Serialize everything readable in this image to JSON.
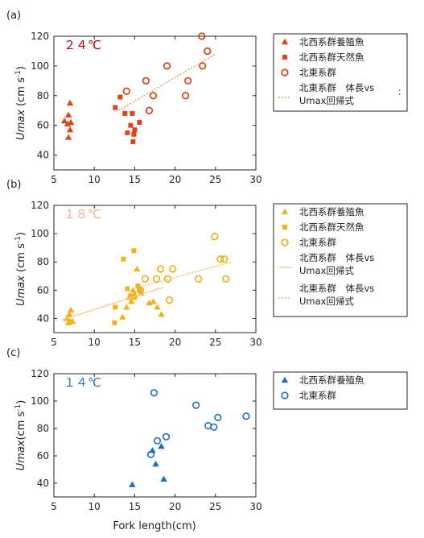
{
  "figure": {
    "xlabel": "Fork length(cm)",
    "ylabel_main": "Umax",
    "ylabel_unit_a": " (cm s",
    "ylabel_unit_b": " (cm s",
    "ylabel_unit_c": "(cm s",
    "ylabel_exp": "-1",
    "ylabel_close": ")"
  },
  "chart_data": [
    {
      "type": "scatter",
      "panel_label": "(a)",
      "temperature": "２４℃",
      "temperature_color": "#c00000",
      "xlim": [
        5,
        30
      ],
      "ylim": [
        30,
        120
      ],
      "xticks": [
        5,
        10,
        15,
        20,
        25,
        30
      ],
      "yticks": [
        40,
        60,
        80,
        100,
        120
      ],
      "legend": {
        "items": [
          {
            "marker": "triangle-filled",
            "color": "#e0441a",
            "label": "北西系群養殖魚"
          },
          {
            "marker": "square-filled",
            "color": "#e0441a",
            "label": "北西系群天然魚"
          },
          {
            "marker": "circle-open",
            "color": "#d43a10",
            "label": "北東系群"
          },
          {
            "marker": "dotted-line",
            "color": "#ee8855",
            "label": "北東系群　体長vs",
            "label2": "Umax回帰式"
          }
        ],
        "marker_char": "："
      },
      "series": [
        {
          "name": "北西系群養殖魚",
          "marker": "triangle-filled",
          "color": "#e0441a",
          "x": [
            6.3,
            6.8,
            7.0,
            6.7,
            7.0,
            6.8,
            7.1
          ],
          "y": [
            63,
            67,
            75,
            61,
            57,
            52,
            62
          ]
        },
        {
          "name": "北西系群天然魚",
          "marker": "square-filled",
          "color": "#e0441a",
          "x": [
            12.6,
            13.2,
            13.8,
            14.1,
            14.5,
            14.7,
            14.8,
            14.9,
            15.0,
            15.6
          ],
          "y": [
            72,
            79,
            68,
            55,
            60,
            68,
            49,
            54,
            57,
            62
          ]
        },
        {
          "name": "北東系群",
          "marker": "circle-open",
          "color": "#d43a10",
          "x": [
            14.0,
            16.4,
            16.8,
            17.3,
            19.0,
            21.3,
            21.6,
            23.3,
            23.4,
            24.0
          ],
          "y": [
            83,
            90,
            70,
            80,
            100,
            80,
            90,
            120,
            100,
            110
          ]
        },
        {
          "name": "北東系群　体長vs Umax回帰式",
          "type": "line",
          "style": "dotted",
          "color": "#ee8855",
          "x": [
            13.0,
            25.0
          ],
          "y": [
            70.0,
            108.0
          ]
        }
      ]
    },
    {
      "type": "scatter",
      "panel_label": "(b)",
      "temperature": "１８℃",
      "temperature_color": "#f4b183",
      "xlim": [
        5,
        30
      ],
      "ylim": [
        30,
        120
      ],
      "xticks": [
        5,
        10,
        15,
        20,
        25,
        30
      ],
      "yticks": [
        40,
        60,
        80,
        100,
        120
      ],
      "legend": {
        "items": [
          {
            "marker": "triangle-filled",
            "color": "#f2b31a",
            "label": "北西系群養殖魚"
          },
          {
            "marker": "square-filled",
            "color": "#f2b31a",
            "label": "北西系群天然魚"
          },
          {
            "marker": "circle-open",
            "color": "#e8b016",
            "label": "北東系群"
          },
          {
            "marker": "solid-line",
            "color": "#f5c57a",
            "label": "北西系群　体長vs",
            "label2": "Umax回帰式"
          },
          {
            "marker": "dotted-line",
            "color": "#f0b050",
            "label": "北東系群　体長vs",
            "label2": "Umax回帰式"
          }
        ]
      },
      "series": [
        {
          "name": "北西系群養殖魚",
          "marker": "triangle-filled",
          "color": "#f2b31a",
          "x": [
            6.6,
            6.9,
            7.1,
            7.3,
            6.8,
            7.0,
            13.5,
            14.0,
            14.3,
            14.6,
            15.0,
            15.3,
            15.8,
            16.8,
            17.3,
            17.8,
            18.3,
            14.8
          ],
          "y": [
            40,
            43,
            46,
            38,
            37,
            38,
            41,
            48,
            55,
            52,
            57,
            75,
            58,
            51,
            52,
            48,
            43,
            60
          ]
        },
        {
          "name": "北西系群天然魚",
          "marker": "square-filled",
          "color": "#f2b31a",
          "x": [
            12.5,
            12.6,
            13.6,
            14.1,
            14.5,
            14.9,
            15.0,
            15.4,
            15.6
          ],
          "y": [
            37,
            48,
            82,
            61,
            56,
            88,
            55,
            63,
            60
          ]
        },
        {
          "name": "北東系群",
          "marker": "circle-open",
          "color": "#e8b016",
          "x": [
            15.7,
            16.3,
            17.7,
            18.2,
            19.1,
            19.3,
            19.7,
            22.9,
            24.9,
            25.6,
            26.1,
            26.3
          ],
          "y": [
            60,
            68,
            68,
            75,
            68,
            53,
            75,
            68,
            98,
            82,
            82,
            68
          ]
        },
        {
          "name": "北西系群　体長vs Umax回帰式",
          "type": "line",
          "style": "solid",
          "color": "#f5c57a",
          "x": [
            6.0,
            18.5
          ],
          "y": [
            39.0,
            62.0
          ]
        },
        {
          "name": "北東系群　体長vs Umax回帰式",
          "type": "line",
          "style": "dotted",
          "color": "#f0b050",
          "x": [
            15.5,
            27.0
          ],
          "y": [
            62.0,
            80.0
          ]
        }
      ]
    },
    {
      "type": "scatter",
      "panel_label": "(c)",
      "temperature": "１４℃",
      "temperature_color": "#2e75b6",
      "xlim": [
        5,
        30
      ],
      "ylim": [
        30,
        120
      ],
      "xticks": [
        5,
        10,
        15,
        20,
        25,
        30
      ],
      "yticks": [
        40,
        60,
        80,
        100,
        120
      ],
      "legend": {
        "items": [
          {
            "marker": "triangle-filled",
            "color": "#1f6fc0",
            "label": "北西系群養殖魚"
          },
          {
            "marker": "circle-open",
            "color": "#1f6fc0",
            "label": "北東系群"
          }
        ]
      },
      "series": [
        {
          "name": "北西系群養殖魚",
          "marker": "triangle-filled",
          "color": "#1f6fc0",
          "x": [
            14.7,
            17.2,
            17.6,
            18.3,
            18.6
          ],
          "y": [
            39,
            64,
            54,
            67,
            43
          ]
        },
        {
          "name": "北東系群",
          "marker": "circle-open",
          "color": "#1f6fc0",
          "x": [
            17.0,
            17.4,
            17.8,
            18.9,
            22.6,
            24.1,
            24.8,
            25.3,
            28.8
          ],
          "y": [
            61,
            106,
            71,
            74,
            97,
            82,
            81,
            88,
            89
          ]
        }
      ]
    }
  ]
}
